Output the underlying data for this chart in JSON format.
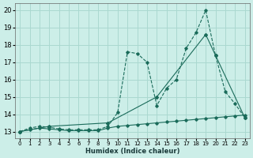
{
  "xlabel": "Humidex (Indice chaleur)",
  "background_color": "#cceee8",
  "grid_color": "#aad8d0",
  "line_color": "#1a6b5a",
  "xlim": [
    -0.5,
    23.5
  ],
  "ylim": [
    12.6,
    20.4
  ],
  "xticks": [
    0,
    1,
    2,
    3,
    4,
    5,
    6,
    7,
    8,
    9,
    10,
    11,
    12,
    13,
    14,
    15,
    16,
    17,
    18,
    19,
    20,
    21,
    22,
    23
  ],
  "yticks": [
    13,
    14,
    15,
    16,
    17,
    18,
    19,
    20
  ],
  "series1_x": [
    0,
    1,
    2,
    3,
    4,
    5,
    6,
    7,
    8,
    9,
    10,
    11,
    12,
    13,
    14,
    15,
    16,
    17,
    18,
    19,
    20,
    21,
    22,
    23
  ],
  "series1_y": [
    13.0,
    13.2,
    13.3,
    13.25,
    13.15,
    13.1,
    13.1,
    13.1,
    13.1,
    13.3,
    14.1,
    17.6,
    17.5,
    17.0,
    14.5,
    15.5,
    16.0,
    17.8,
    18.7,
    20.0,
    17.4,
    15.3,
    14.6,
    13.8
  ],
  "series2_x": [
    0,
    1,
    2,
    3,
    4,
    5,
    6,
    7,
    8,
    9,
    10,
    11,
    12,
    13,
    14,
    15,
    16,
    17,
    18,
    19,
    20,
    21,
    22,
    23
  ],
  "series2_y": [
    13.0,
    13.1,
    13.2,
    13.15,
    13.1,
    13.05,
    13.05,
    13.05,
    13.05,
    13.2,
    13.3,
    13.35,
    13.4,
    13.45,
    13.5,
    13.55,
    13.6,
    13.65,
    13.7,
    13.75,
    13.8,
    13.85,
    13.9,
    13.95
  ],
  "series3_x": [
    0,
    3,
    9,
    14,
    19,
    20,
    23
  ],
  "series3_y": [
    13.0,
    13.3,
    13.5,
    15.0,
    18.6,
    17.4,
    13.8
  ]
}
